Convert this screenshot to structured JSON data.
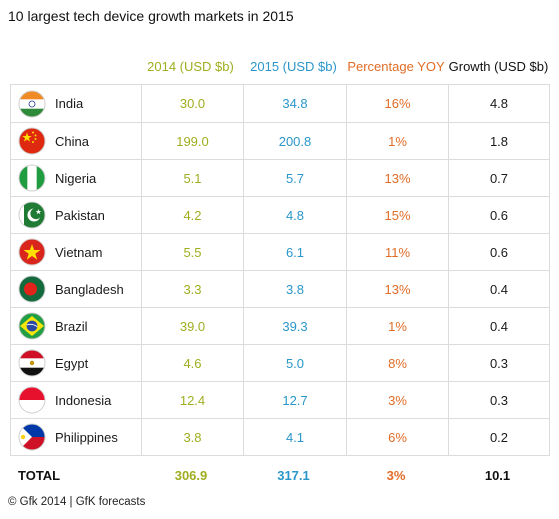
{
  "title": "10 largest tech device growth markets in 2015",
  "headers": {
    "y2014": "2014 (USD $b)",
    "y2015": "2015 (USD $b)",
    "pct": "Percentage YOY",
    "growth": "Growth (USD $b)"
  },
  "chart_data": {
    "type": "table",
    "title": "10 largest tech device growth markets in 2015",
    "columns": [
      "2014 (USD $b)",
      "2015 (USD $b)",
      "Percentage YOY",
      "Growth (USD $b)"
    ],
    "rows": [
      {
        "country": "India",
        "flag": "india-flag-icon",
        "y2014": "30.0",
        "y2015": "34.8",
        "pct": "16%",
        "growth": "4.8"
      },
      {
        "country": "China",
        "flag": "china-flag-icon",
        "y2014": "199.0",
        "y2015": "200.8",
        "pct": "1%",
        "growth": "1.8"
      },
      {
        "country": "Nigeria",
        "flag": "nigeria-flag-icon",
        "y2014": "5.1",
        "y2015": "5.7",
        "pct": "13%",
        "growth": "0.7"
      },
      {
        "country": "Pakistan",
        "flag": "pakistan-flag-icon",
        "y2014": "4.2",
        "y2015": "4.8",
        "pct": "15%",
        "growth": "0.6"
      },
      {
        "country": "Vietnam",
        "flag": "vietnam-flag-icon",
        "y2014": "5.5",
        "y2015": "6.1",
        "pct": "11%",
        "growth": "0.6"
      },
      {
        "country": "Bangladesh",
        "flag": "bangladesh-flag-icon",
        "y2014": "3.3",
        "y2015": "3.8",
        "pct": "13%",
        "growth": "0.4"
      },
      {
        "country": "Brazil",
        "flag": "brazil-flag-icon",
        "y2014": "39.0",
        "y2015": "39.3",
        "pct": "1%",
        "growth": "0.4"
      },
      {
        "country": "Egypt",
        "flag": "egypt-flag-icon",
        "y2014": "4.6",
        "y2015": "5.0",
        "pct": "8%",
        "growth": "0.3"
      },
      {
        "country": "Indonesia",
        "flag": "indonesia-flag-icon",
        "y2014": "12.4",
        "y2015": "12.7",
        "pct": "3%",
        "growth": "0.3"
      },
      {
        "country": "Philippines",
        "flag": "philippines-flag-icon",
        "y2014": "3.8",
        "y2015": "4.1",
        "pct": "6%",
        "growth": "0.2"
      }
    ],
    "total": {
      "label": "TOTAL",
      "y2014": "306.9",
      "y2015": "317.1",
      "pct": "3%",
      "growth": "10.1"
    }
  },
  "colors": {
    "y2014": "#9fae1f",
    "y2015": "#2a96c9",
    "pct": "#e06c26",
    "growth": "#1a1a1a"
  },
  "footer": "© Gfk 2014 | GfK forecasts"
}
